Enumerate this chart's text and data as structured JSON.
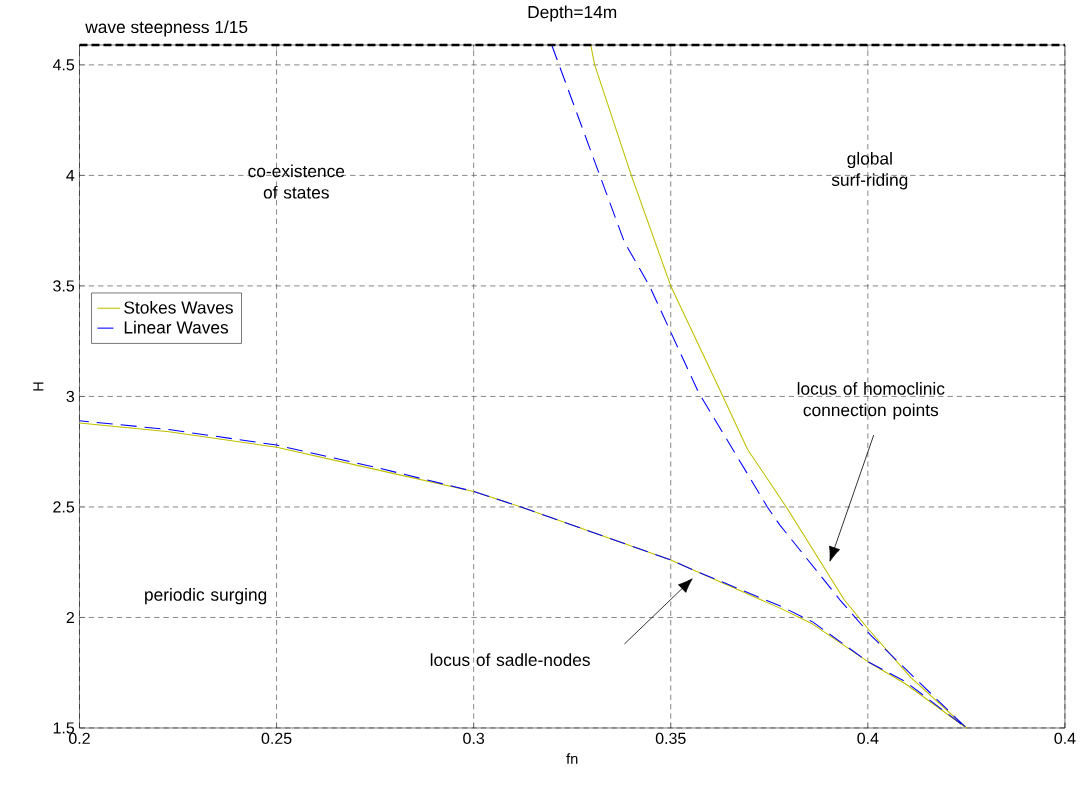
{
  "chart_data": {
    "type": "line",
    "title": "Depth=14m",
    "xlabel": "fn",
    "ylabel": "H",
    "xlim": [
      0.2,
      0.45
    ],
    "ylim": [
      1.5,
      4.59
    ],
    "xticks": [
      0.2,
      0.25,
      0.3,
      0.35,
      0.4,
      {
        "value": 0.45,
        "label": "0.4"
      }
    ],
    "yticks": [
      1.5,
      2,
      2.5,
      3,
      3.5,
      4,
      4.5
    ],
    "grid": true,
    "legend": "left",
    "series": [
      {
        "name": "Stokes Waves",
        "color": "#bfbf00",
        "line_style": "solid",
        "x": [
          0.3297,
          0.3307,
          0.34,
          0.35,
          0.3627,
          0.3695,
          0.3793,
          0.394,
          0.4,
          0.4108,
          0.425,
          0.4095,
          0.4,
          0.386,
          0.378,
          0.355,
          0.35,
          0.312,
          0.3,
          0.275,
          0.25,
          0.2227,
          0.2
        ],
        "values": [
          4.59,
          4.5,
          4.0,
          3.5,
          3.02,
          2.76,
          2.5,
          2.08,
          1.95,
          1.73,
          1.5,
          1.7,
          1.8,
          1.97,
          2.04,
          2.22,
          2.26,
          2.5,
          2.57,
          2.67,
          2.77,
          2.84,
          2.88
        ]
      },
      {
        "name": "Linear Waves",
        "color": "#0000ff",
        "line_style": "dashed",
        "x": [
          0.3198,
          0.332,
          0.3382,
          0.3446,
          0.357,
          0.3745,
          0.3776,
          0.3929,
          0.4007,
          0.425,
          0.4095,
          0.4,
          0.386,
          0.378,
          0.355,
          0.35,
          0.312,
          0.3,
          0.275,
          0.25,
          0.2227,
          0.2
        ],
        "values": [
          4.59,
          4.0,
          3.7,
          3.5,
          3.02,
          2.5,
          2.42,
          2.08,
          1.92,
          1.5,
          1.71,
          1.8,
          1.98,
          2.05,
          2.22,
          2.26,
          2.5,
          2.57,
          2.68,
          2.78,
          2.85,
          2.89
        ]
      }
    ],
    "ref_lines": [
      {
        "axis": "y",
        "value": 4.59,
        "label": "wave steepness 1/15",
        "color": "#000000",
        "line_style": "dashed"
      }
    ],
    "annotations": [
      "co-existence of states",
      "global surf-riding",
      "periodic surging",
      "locus of sadle-nodes",
      "locus of homoclinic connection points"
    ]
  }
}
